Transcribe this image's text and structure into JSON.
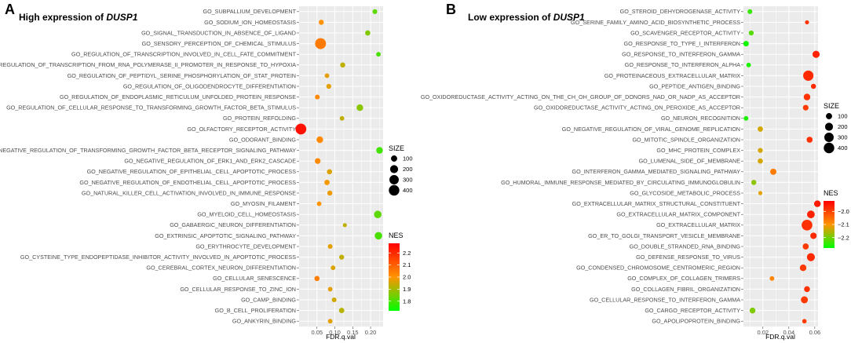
{
  "chart_data": [
    {
      "type": "scatter",
      "panel_label": "A",
      "title_prefix": "High expression of ",
      "title_gene": "DUSP1",
      "xlabel": "FDR.q.val",
      "xlim": [
        0.0,
        0.235
      ],
      "xticks": [
        0.05,
        0.1,
        0.15,
        0.2
      ],
      "xtick_labels": [
        "0.05",
        "0.10",
        "0.15",
        "0.20"
      ],
      "size_legend": {
        "title": "SIZE",
        "values": [
          100,
          200,
          300,
          400
        ],
        "labels": [
          "100",
          "200",
          "300",
          "400"
        ]
      },
      "color_legend": {
        "title": "NES",
        "range": [
          1.72,
          2.28
        ],
        "ticks": [
          2.2,
          2.1,
          2.0,
          1.9,
          1.8
        ],
        "tick_labels": [
          "2.2",
          "2.1",
          "2.0",
          "1.9",
          "1.8"
        ],
        "high_color": "#ff0000",
        "low_color": "#00ff00"
      },
      "points": [
        {
          "term": "GO_SUBPALLIUM_DEVELOPMENT",
          "fdr": 0.212,
          "size": 45,
          "nes": 1.82
        },
        {
          "term": "GO_SODIUM_ION_HOMEOSTASIS",
          "fdr": 0.062,
          "size": 55,
          "nes": 2.0
        },
        {
          "term": "GO_SIGNAL_TRANSDUCTION_IN_ABSENCE_OF_LIGAND",
          "fdr": 0.192,
          "size": 60,
          "nes": 1.86
        },
        {
          "term": "GO_SENSORY_PERCEPTION_OF_CHEMICAL_STIMULUS",
          "fdr": 0.06,
          "size": 440,
          "nes": 2.05
        },
        {
          "term": "GO_REGULATION_OF_TRANSCRIPTION_INVOLVED_IN_CELL_FATE_COMMITMENT",
          "fdr": 0.222,
          "size": 40,
          "nes": 1.8
        },
        {
          "term": "GO_REGULATION_OF_TRANSCRIPTION_FROM_RNA_POLYMERASE_II_PROMOTER_IN_RESPONSE_TO_HYPOXIA",
          "fdr": 0.122,
          "size": 55,
          "nes": 1.93
        },
        {
          "term": "GO_REGULATION_OF_PEPTIDYL_SERINE_PHOSPHORYLATION_OF_STAT_PROTEIN",
          "fdr": 0.078,
          "size": 40,
          "nes": 1.97
        },
        {
          "term": "GO_REGULATION_OF_OLIGODENDROCYTE_DIFFERENTIATION",
          "fdr": 0.083,
          "size": 50,
          "nes": 1.97
        },
        {
          "term": "GO_REGULATION_OF_ENDOPLASMIC_RETICULUM_UNFOLDED_PROTEIN_RESPONSE",
          "fdr": 0.051,
          "size": 45,
          "nes": 2.02
        },
        {
          "term": "GO_REGULATION_OF_CELLULAR_RESPONSE_TO_TRANSFORMING_GROWTH_FACTOR_BETA_STIMULUS",
          "fdr": 0.17,
          "size": 120,
          "nes": 1.87
        },
        {
          "term": "GO_PROTEIN_REFOLDING",
          "fdr": 0.12,
          "size": 40,
          "nes": 1.93
        },
        {
          "term": "GO_OLFACTORY_RECEPTOR_ACTIVITY",
          "fdr": 0.005,
          "size": 430,
          "nes": 2.25
        },
        {
          "term": "GO_ODORANT_BINDING",
          "fdr": 0.058,
          "size": 120,
          "nes": 2.02
        },
        {
          "term": "GO_NEGATIVE_REGULATION_OF_TRANSFORMING_GROWTH_FACTOR_BETA_RECEPTOR_SIGNALING_PATHWAY",
          "fdr": 0.225,
          "size": 120,
          "nes": 1.79
        },
        {
          "term": "GO_NEGATIVE_REGULATION_OF_ERK1_AND_ERK2_CASCADE",
          "fdr": 0.052,
          "size": 80,
          "nes": 2.02
        },
        {
          "term": "GO_NEGATIVE_REGULATION_OF_EPITHELIAL_CELL_APOPTOTIC_PROCESS",
          "fdr": 0.085,
          "size": 60,
          "nes": 1.96
        },
        {
          "term": "GO_NEGATIVE_REGULATION_OF_ENDOTHELIAL_CELL_APOPTOTIC_PROCESS",
          "fdr": 0.078,
          "size": 65,
          "nes": 1.99
        },
        {
          "term": "GO_NATURAL_KILLER_CELL_ACTIVATION_INVOLVED_IN_IMMUNE_RESPONSE",
          "fdr": 0.086,
          "size": 55,
          "nes": 1.98
        },
        {
          "term": "GO_MYOSIN_FILAMENT",
          "fdr": 0.056,
          "size": 40,
          "nes": 2.0
        },
        {
          "term": "GO_MYELOID_CELL_HOMEOSTASIS",
          "fdr": 0.22,
          "size": 170,
          "nes": 1.82
        },
        {
          "term": "GO_GABAERGIC_NEURON_DIFFERENTIATION",
          "fdr": 0.128,
          "size": 25,
          "nes": 1.93
        },
        {
          "term": "GO_EXTRINSIC_APOPTOTIC_SIGNALING_PATHWAY",
          "fdr": 0.222,
          "size": 170,
          "nes": 1.8
        },
        {
          "term": "GO_ERYTHROCYTE_DEVELOPMENT",
          "fdr": 0.087,
          "size": 45,
          "nes": 1.97
        },
        {
          "term": "GO_CYSTEINE_TYPE_ENDOPEPTIDASE_INHIBITOR_ACTIVITY_INVOLVED_IN_APOPTOTIC_PROCESS",
          "fdr": 0.119,
          "size": 50,
          "nes": 1.93
        },
        {
          "term": "GO_CEREBRAL_CORTEX_NEURON_DIFFERENTIATION",
          "fdr": 0.095,
          "size": 40,
          "nes": 1.96
        },
        {
          "term": "GO_CELLULAR_SENESCENCE",
          "fdr": 0.05,
          "size": 60,
          "nes": 2.04
        },
        {
          "term": "GO_CELLULAR_RESPONSE_TO_ZINC_ION",
          "fdr": 0.087,
          "size": 40,
          "nes": 1.97
        },
        {
          "term": "GO_CAMP_BINDING",
          "fdr": 0.098,
          "size": 45,
          "nes": 1.95
        },
        {
          "term": "GO_B_CELL_PROLIFERATION",
          "fdr": 0.119,
          "size": 65,
          "nes": 1.92
        },
        {
          "term": "GO_ANKYRIN_BINDING",
          "fdr": 0.087,
          "size": 40,
          "nes": 1.97
        }
      ]
    },
    {
      "type": "scatter",
      "panel_label": "B",
      "title_prefix": "Low expression of ",
      "title_gene": "DUSP1",
      "xlabel": "FDR.q.val",
      "xlim": [
        0.005,
        0.0625
      ],
      "xticks": [
        0.02,
        0.04,
        0.06
      ],
      "xtick_labels": [
        "0.02",
        "0.04",
        "0.06"
      ],
      "size_legend": {
        "title": "SIZE",
        "values": [
          100,
          200,
          300,
          400
        ],
        "labels": [
          "100",
          "200",
          "300",
          "400"
        ]
      },
      "color_legend": {
        "title": "NES",
        "range": [
          -2.28,
          -1.92
        ],
        "ticks": [
          -2.0,
          -2.1,
          -2.2
        ],
        "tick_labels": [
          "−2.0",
          "−2.1",
          "−2.2"
        ],
        "high_color": "#ff0000",
        "low_color": "#00ff00"
      },
      "points": [
        {
          "term": "GO_STEROID_DEHYDROGENASE_ACTIVITY",
          "fdr": 0.01,
          "size": 45,
          "nes": -2.24
        },
        {
          "term": "GO_SERINE_FAMILY_AMINO_ACID_BIOSYNTHETIC_PROCESS",
          "fdr": 0.054,
          "size": 25,
          "nes": -1.98
        },
        {
          "term": "GO_SCAVENGER_RECEPTOR_ACTIVITY",
          "fdr": 0.011,
          "size": 50,
          "nes": -2.22
        },
        {
          "term": "GO_RESPONSE_TO_TYPE_I_INTERFERON",
          "fdr": 0.007,
          "size": 70,
          "nes": -2.27
        },
        {
          "term": "GO_RESPONSE_TO_INTERFERON_GAMMA",
          "fdr": 0.061,
          "size": 150,
          "nes": -1.96
        },
        {
          "term": "GO_RESPONSE_TO_INTERFERON_ALPHA",
          "fdr": 0.009,
          "size": 40,
          "nes": -2.26
        },
        {
          "term": "GO_PROTEINACEOUS_EXTRACELLULAR_MATRIX",
          "fdr": 0.055,
          "size": 380,
          "nes": -1.97
        },
        {
          "term": "GO_PEPTIDE_ANTIGEN_BINDING",
          "fdr": 0.059,
          "size": 55,
          "nes": -1.97
        },
        {
          "term": "GO_OXIDOREDUCTASE_ACTIVITY_ACTING_ON_THE_CH_OH_GROUP_OF_DONORS_NAD_OR_NADP_AS_ACCEPTOR",
          "fdr": 0.054,
          "size": 120,
          "nes": -1.98
        },
        {
          "term": "GO_OXIDOREDUCTASE_ACTIVITY_ACTING_ON_PEROXIDE_AS_ACCEPTOR",
          "fdr": 0.053,
          "size": 75,
          "nes": -1.99
        },
        {
          "term": "GO_NEURON_RECOGNITION",
          "fdr": 0.007,
          "size": 40,
          "nes": -2.26
        },
        {
          "term": "GO_NEGATIVE_REGULATION_OF_VIRAL_GENOME_REPLICATION",
          "fdr": 0.018,
          "size": 65,
          "nes": -2.13
        },
        {
          "term": "GO_MITOTIC_SPINDLE_ORGANIZATION",
          "fdr": 0.056,
          "size": 90,
          "nes": -1.98
        },
        {
          "term": "GO_MHC_PROTEIN_COMPLEX",
          "fdr": 0.018,
          "size": 50,
          "nes": -2.13
        },
        {
          "term": "GO_LUMENAL_SIDE_OF_MEMBRANE",
          "fdr": 0.018,
          "size": 60,
          "nes": -2.13
        },
        {
          "term": "GO_INTERFERON_GAMMA_MEDIATED_SIGNALING_PATHWAY",
          "fdr": 0.028,
          "size": 100,
          "nes": -2.07
        },
        {
          "term": "GO_HUMORAL_IMMUNE_RESPONSE_MEDIATED_BY_CIRCULATING_IMMUNOGLOBULIN",
          "fdr": 0.013,
          "size": 55,
          "nes": -2.18
        },
        {
          "term": "GO_GLYCOSIDE_METABOLIC_PROCESS",
          "fdr": 0.018,
          "size": 25,
          "nes": -2.12
        },
        {
          "term": "GO_EXTRACELLULAR_MATRIX_STRUCTURAL_CONSTITUENT",
          "fdr": 0.062,
          "size": 120,
          "nes": -1.95
        },
        {
          "term": "GO_EXTRACELLULAR_MATRIX_COMPONENT",
          "fdr": 0.057,
          "size": 180,
          "nes": -1.96
        },
        {
          "term": "GO_EXTRACELLULAR_MATRIX",
          "fdr": 0.054,
          "size": 420,
          "nes": -1.98
        },
        {
          "term": "GO_ER_TO_GOLGI_TRANSPORT_VESICLE_MEMBRANE",
          "fdr": 0.059,
          "size": 110,
          "nes": -1.97
        },
        {
          "term": "GO_DOUBLE_STRANDED_RNA_BINDING",
          "fdr": 0.053,
          "size": 95,
          "nes": -1.99
        },
        {
          "term": "GO_DEFENSE_RESPONSE_TO_VIRUS",
          "fdr": 0.057,
          "size": 200,
          "nes": -1.97
        },
        {
          "term": "GO_CONDENSED_CHROMOSOME_CENTROMERIC_REGION",
          "fdr": 0.051,
          "size": 120,
          "nes": -1.99
        },
        {
          "term": "GO_COMPLEX_OF_COLLAGEN_TRIMERS",
          "fdr": 0.027,
          "size": 40,
          "nes": -2.08
        },
        {
          "term": "GO_COLLAGEN_FIBRIL_ORGANIZATION",
          "fdr": 0.054,
          "size": 85,
          "nes": -1.98
        },
        {
          "term": "GO_CELLULAR_RESPONSE_TO_INTERFERON_GAMMA",
          "fdr": 0.052,
          "size": 140,
          "nes": -1.99
        },
        {
          "term": "GO_CARGO_RECEPTOR_ACTIVITY",
          "fdr": 0.012,
          "size": 85,
          "nes": -2.19
        },
        {
          "term": "GO_APOLIPOPROTEIN_BINDING",
          "fdr": 0.052,
          "size": 35,
          "nes": -1.99
        }
      ]
    }
  ]
}
